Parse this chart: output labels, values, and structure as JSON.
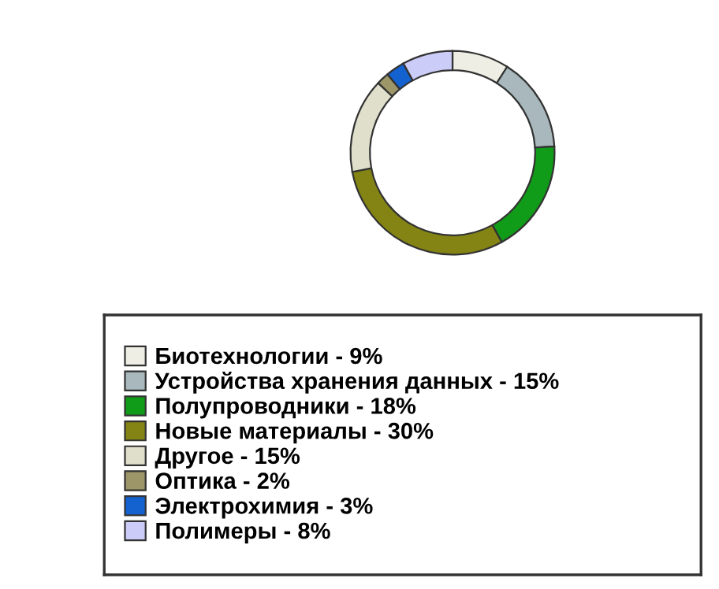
{
  "chart_data": {
    "type": "donut",
    "categories": [
      "Биотехнологии - 9%",
      "Устройства хранения данных - 15%",
      "Полупроводники - 18%",
      "Новые материалы - 30%",
      "Другое - 15%",
      "Оптика - 2%",
      "Электрохимия - 3%",
      "Полимеры - 8%"
    ],
    "values": [
      9,
      15,
      18,
      30,
      15,
      2,
      3,
      8
    ],
    "colors": [
      "#eeeee4",
      "#a8b8bc",
      "#109c18",
      "#848414",
      "#e0dfcc",
      "#9c9668",
      "#1462d0",
      "#ccccf8"
    ],
    "legend": "bottom"
  }
}
